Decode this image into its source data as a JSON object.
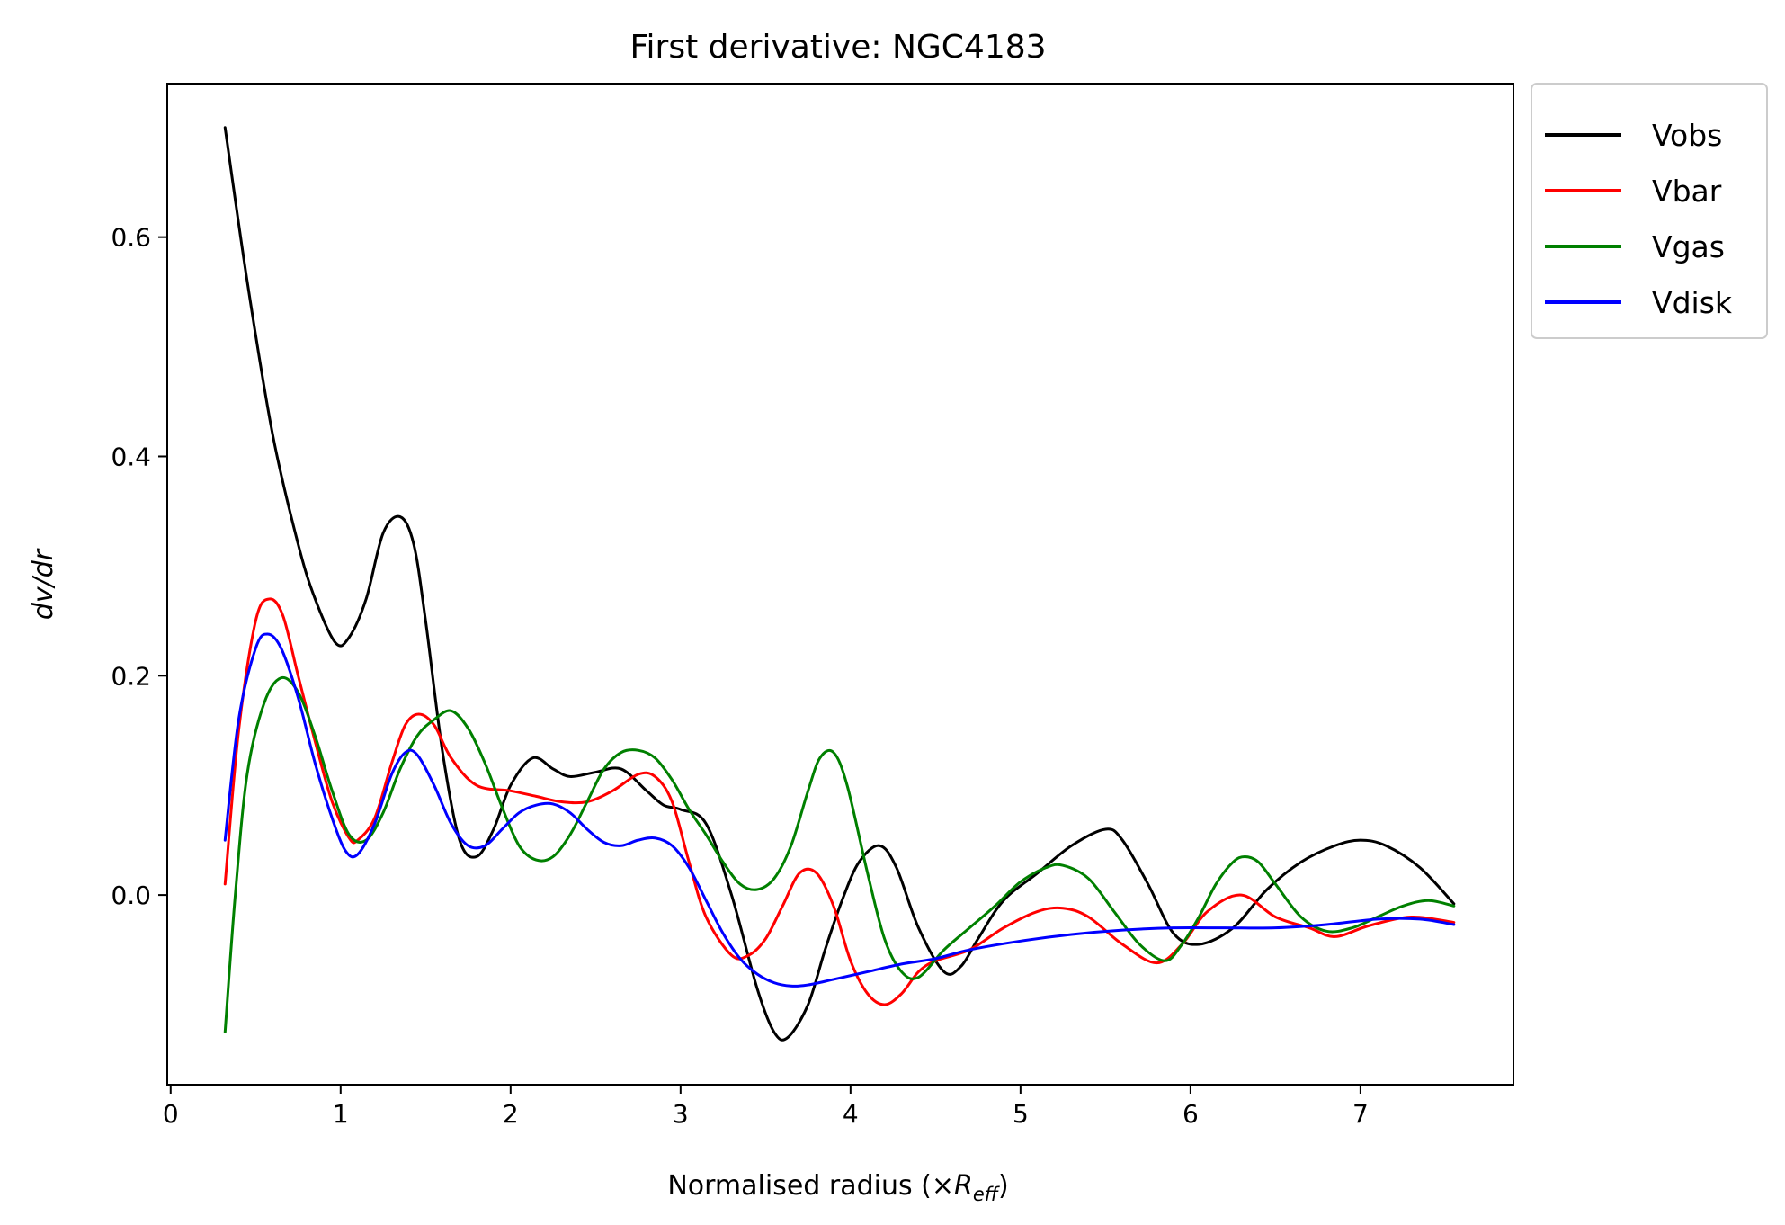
{
  "chart_data": {
    "type": "line",
    "title": "First derivative: NGC4183",
    "xlabel": {
      "prefix": "Normalised radius (×",
      "symbol": "R",
      "subscript": "eff",
      "suffix": ")"
    },
    "ylabel": "dv/dr",
    "xlim": [
      -0.02,
      7.9
    ],
    "ylim": [
      -0.173,
      0.74
    ],
    "xticks": [
      0,
      1,
      2,
      3,
      4,
      5,
      6,
      7
    ],
    "yticks": [
      0.0,
      0.2,
      0.4,
      0.6
    ],
    "ytick_labels": [
      "0.0",
      "0.2",
      "0.4",
      "0.6"
    ],
    "grid": false,
    "legend_position": "outside-top-right",
    "series": [
      {
        "name": "Vobs",
        "color": "#000000",
        "x": [
          0.32,
          0.45,
          0.6,
          0.75,
          0.85,
          0.97,
          1.05,
          1.15,
          1.25,
          1.35,
          1.43,
          1.5,
          1.6,
          1.7,
          1.8,
          1.9,
          2.0,
          2.13,
          2.25,
          2.35,
          2.5,
          2.65,
          2.8,
          2.9,
          3.0,
          3.15,
          3.3,
          3.45,
          3.55,
          3.63,
          3.75,
          3.85,
          3.95,
          4.05,
          4.17,
          4.27,
          4.4,
          4.55,
          4.65,
          4.75,
          4.9,
          5.1,
          5.3,
          5.5,
          5.6,
          5.75,
          5.9,
          6.05,
          6.25,
          6.45,
          6.65,
          6.85,
          7.0,
          7.15,
          7.35,
          7.55
        ],
        "y": [
          0.7,
          0.56,
          0.42,
          0.32,
          0.27,
          0.23,
          0.235,
          0.27,
          0.33,
          0.345,
          0.32,
          0.25,
          0.13,
          0.05,
          0.035,
          0.06,
          0.1,
          0.125,
          0.115,
          0.108,
          0.112,
          0.115,
          0.095,
          0.082,
          0.078,
          0.065,
          0.0,
          -0.085,
          -0.125,
          -0.13,
          -0.1,
          -0.05,
          -0.005,
          0.03,
          0.045,
          0.025,
          -0.03,
          -0.07,
          -0.065,
          -0.04,
          -0.005,
          0.02,
          0.045,
          0.06,
          0.05,
          0.01,
          -0.035,
          -0.045,
          -0.03,
          0.005,
          0.03,
          0.045,
          0.05,
          0.045,
          0.025,
          -0.008
        ]
      },
      {
        "name": "Vbar",
        "color": "#ff0000",
        "x": [
          0.32,
          0.4,
          0.5,
          0.58,
          0.66,
          0.75,
          0.85,
          0.95,
          1.05,
          1.1,
          1.2,
          1.3,
          1.38,
          1.46,
          1.55,
          1.65,
          1.8,
          2.0,
          2.15,
          2.3,
          2.45,
          2.6,
          2.75,
          2.85,
          2.95,
          3.05,
          3.15,
          3.3,
          3.4,
          3.5,
          3.6,
          3.7,
          3.8,
          3.9,
          4.0,
          4.1,
          4.2,
          4.3,
          4.4,
          4.5,
          4.7,
          4.9,
          5.1,
          5.25,
          5.4,
          5.6,
          5.8,
          5.95,
          6.1,
          6.3,
          6.5,
          6.7,
          6.85,
          7.05,
          7.3,
          7.55
        ],
        "y": [
          0.01,
          0.15,
          0.25,
          0.27,
          0.255,
          0.2,
          0.14,
          0.085,
          0.052,
          0.05,
          0.07,
          0.12,
          0.155,
          0.165,
          0.155,
          0.125,
          0.1,
          0.095,
          0.09,
          0.085,
          0.085,
          0.095,
          0.11,
          0.108,
          0.085,
          0.03,
          -0.02,
          -0.055,
          -0.055,
          -0.04,
          -0.01,
          0.02,
          0.02,
          -0.01,
          -0.06,
          -0.09,
          -0.1,
          -0.09,
          -0.07,
          -0.06,
          -0.05,
          -0.03,
          -0.015,
          -0.012,
          -0.02,
          -0.045,
          -0.062,
          -0.045,
          -0.015,
          0.0,
          -0.02,
          -0.03,
          -0.038,
          -0.028,
          -0.02,
          -0.025
        ]
      },
      {
        "name": "Vgas",
        "color": "#008000",
        "x": [
          0.32,
          0.38,
          0.45,
          0.55,
          0.65,
          0.75,
          0.85,
          0.95,
          1.05,
          1.15,
          1.25,
          1.35,
          1.45,
          1.55,
          1.65,
          1.75,
          1.85,
          1.95,
          2.05,
          2.15,
          2.25,
          2.35,
          2.45,
          2.55,
          2.65,
          2.75,
          2.85,
          2.95,
          3.05,
          3.15,
          3.25,
          3.35,
          3.45,
          3.55,
          3.65,
          3.75,
          3.82,
          3.9,
          3.98,
          4.1,
          4.2,
          4.3,
          4.4,
          4.55,
          4.7,
          4.85,
          5.0,
          5.15,
          5.25,
          5.4,
          5.55,
          5.7,
          5.85,
          5.95,
          6.05,
          6.15,
          6.25,
          6.32,
          6.4,
          6.5,
          6.65,
          6.8,
          6.95,
          7.1,
          7.25,
          7.4,
          7.55
        ],
        "y": [
          -0.125,
          0.0,
          0.11,
          0.175,
          0.198,
          0.185,
          0.145,
          0.095,
          0.055,
          0.05,
          0.075,
          0.115,
          0.145,
          0.16,
          0.168,
          0.152,
          0.12,
          0.08,
          0.045,
          0.032,
          0.035,
          0.055,
          0.085,
          0.115,
          0.13,
          0.132,
          0.125,
          0.105,
          0.078,
          0.055,
          0.03,
          0.01,
          0.005,
          0.015,
          0.045,
          0.095,
          0.125,
          0.13,
          0.1,
          0.02,
          -0.04,
          -0.07,
          -0.075,
          -0.05,
          -0.03,
          -0.01,
          0.012,
          0.025,
          0.027,
          0.015,
          -0.015,
          -0.045,
          -0.06,
          -0.045,
          -0.02,
          0.01,
          0.03,
          0.035,
          0.03,
          0.01,
          -0.02,
          -0.033,
          -0.03,
          -0.02,
          -0.01,
          -0.005,
          -0.01
        ]
      },
      {
        "name": "Vdisk",
        "color": "#0000ff",
        "x": [
          0.32,
          0.4,
          0.5,
          0.57,
          0.65,
          0.75,
          0.85,
          0.95,
          1.03,
          1.1,
          1.2,
          1.3,
          1.38,
          1.45,
          1.55,
          1.65,
          1.75,
          1.85,
          1.95,
          2.05,
          2.15,
          2.25,
          2.35,
          2.45,
          2.55,
          2.65,
          2.75,
          2.85,
          2.95,
          3.05,
          3.15,
          3.25,
          3.35,
          3.45,
          3.55,
          3.65,
          3.75,
          3.9,
          4.1,
          4.3,
          4.5,
          4.7,
          5.0,
          5.3,
          5.6,
          5.9,
          6.2,
          6.5,
          6.8,
          7.1,
          7.35,
          7.55
        ],
        "y": [
          0.05,
          0.16,
          0.225,
          0.238,
          0.225,
          0.18,
          0.12,
          0.07,
          0.04,
          0.037,
          0.065,
          0.11,
          0.13,
          0.128,
          0.1,
          0.065,
          0.045,
          0.045,
          0.06,
          0.075,
          0.082,
          0.083,
          0.075,
          0.06,
          0.048,
          0.045,
          0.05,
          0.052,
          0.045,
          0.025,
          -0.005,
          -0.035,
          -0.058,
          -0.072,
          -0.08,
          -0.083,
          -0.082,
          -0.077,
          -0.07,
          -0.063,
          -0.058,
          -0.05,
          -0.042,
          -0.036,
          -0.032,
          -0.03,
          -0.03,
          -0.03,
          -0.027,
          -0.022,
          -0.022,
          -0.027
        ]
      }
    ]
  }
}
